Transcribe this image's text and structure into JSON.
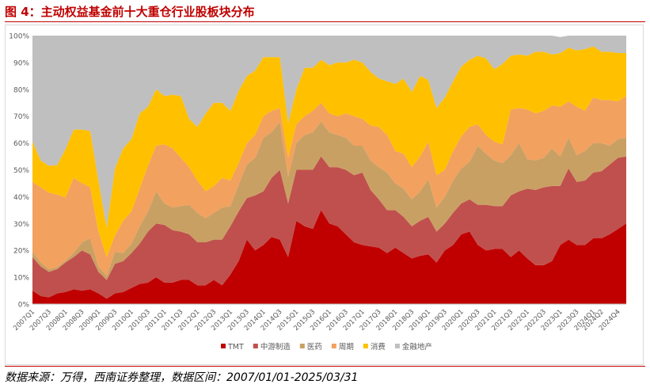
{
  "figure_title": "图 4：主动权益基金前十大重仓行业股板块分布",
  "source_note": "数据来源：万得，西南证券整理，数据区间：2007/01/01-2025/03/31",
  "colors": {
    "TMT": "#c00000",
    "中游制造": "#c0504d",
    "医药": "#c9a063",
    "周期": "#f2a15f",
    "消费": "#ffc000",
    "金融地产": "#bfbfbf",
    "accent": "#c00000"
  },
  "chart_data": {
    "type": "area",
    "stacked": true,
    "title": "",
    "xlabel": "",
    "ylabel": "",
    "ylim": [
      0,
      100
    ],
    "y_ticks": [
      "0%",
      "10%",
      "20%",
      "30%",
      "40%",
      "50%",
      "60%",
      "70%",
      "80%",
      "90%",
      "100%"
    ],
    "grid": false,
    "legend_position": "bottom",
    "x_tick_labels": [
      "2007Q1",
      "2007Q3",
      "2008Q1",
      "2008Q3",
      "2009Q1",
      "2009Q3",
      "2010Q1",
      "2010Q3",
      "2011Q1",
      "2011Q3",
      "2012Q1",
      "2012Q3",
      "2013Q1",
      "2013Q3",
      "2014Q1",
      "2014Q3",
      "2015Q1",
      "2015Q3",
      "2016Q1",
      "2016Q3",
      "2017Q1",
      "2017Q3",
      "2018Q1",
      "2018Q3",
      "2019Q1",
      "2019Q3",
      "2020Q1",
      "2020Q3",
      "2021Q1",
      "2021Q3",
      "2022Q1",
      "2022Q3",
      "2023Q1",
      "2023Q3",
      "2024Q1",
      "2024Q2",
      "2024Q4"
    ],
    "x": [
      "2007Q1",
      "2007Q2",
      "2007Q3",
      "2007Q4",
      "2008Q1",
      "2008Q2",
      "2008Q3",
      "2008Q4",
      "2009Q1",
      "2009Q2",
      "2009Q3",
      "2009Q4",
      "2010Q1",
      "2010Q2",
      "2010Q3",
      "2010Q4",
      "2011Q1",
      "2011Q2",
      "2011Q3",
      "2011Q4",
      "2012Q1",
      "2012Q2",
      "2012Q3",
      "2012Q4",
      "2013Q1",
      "2013Q2",
      "2013Q3",
      "2013Q4",
      "2014Q1",
      "2014Q2",
      "2014Q3",
      "2014Q4",
      "2015Q1",
      "2015Q2",
      "2015Q3",
      "2015Q4",
      "2016Q1",
      "2016Q2",
      "2016Q3",
      "2016Q4",
      "2017Q1",
      "2017Q2",
      "2017Q3",
      "2017Q4",
      "2018Q1",
      "2018Q2",
      "2018Q3",
      "2018Q4",
      "2019Q1",
      "2019Q2",
      "2019Q3",
      "2019Q4",
      "2020Q1",
      "2020Q2",
      "2020Q3",
      "2020Q4",
      "2021Q1",
      "2021Q2",
      "2021Q3",
      "2021Q4",
      "2022Q1",
      "2022Q2",
      "2022Q3",
      "2022Q4",
      "2023Q1",
      "2023Q2",
      "2023Q3",
      "2023Q4",
      "2024Q1",
      "2024Q2",
      "2024Q3",
      "2024Q4",
      "2025Q1"
    ],
    "series": [
      {
        "name": "TMT",
        "values": [
          5,
          3,
          2.5,
          4,
          4.5,
          5.5,
          5,
          5.5,
          4,
          2,
          4,
          4.5,
          6,
          7.5,
          8,
          10,
          8,
          8,
          9,
          9,
          7,
          7,
          9,
          7,
          11,
          16,
          24,
          20,
          22,
          25,
          24,
          17.5,
          31,
          29,
          28,
          35,
          30,
          29,
          26,
          23,
          22,
          21.5,
          21,
          19,
          21,
          19,
          17,
          18,
          18.5,
          15.5,
          20,
          22,
          26,
          27,
          22,
          20,
          20.5,
          20.5,
          17.5,
          20,
          17,
          14.5,
          14.5,
          16,
          22,
          24,
          22,
          22,
          24.5,
          24.5,
          26,
          28,
          30
        ]
      },
      {
        "name": "中游制造",
        "values": [
          12.5,
          11,
          9.5,
          9,
          11,
          12,
          15,
          13,
          8,
          7,
          11,
          11.5,
          13,
          15,
          19,
          20,
          21.5,
          19.5,
          18,
          17,
          16,
          16,
          15,
          17,
          18,
          18.5,
          15.5,
          20.5,
          20,
          22,
          26,
          20,
          19,
          21,
          22,
          20,
          21,
          22,
          24,
          25,
          27,
          21,
          18,
          16,
          14,
          13.5,
          12,
          13,
          14,
          11.5,
          10,
          12,
          11.5,
          12,
          15,
          17,
          16,
          16,
          23,
          22,
          26,
          28,
          29,
          28,
          22,
          26.5,
          23.5,
          24,
          24.5,
          25,
          26,
          26.5,
          25
        ]
      },
      {
        "name": "医药",
        "values": [
          2,
          1.5,
          1,
          0.8,
          0.7,
          1.5,
          3,
          6,
          2,
          1.5,
          4.5,
          3,
          3.5,
          6.5,
          7.5,
          12,
          8,
          8.5,
          9.5,
          11,
          11,
          9,
          10,
          12,
          7.5,
          10,
          12.5,
          14,
          20,
          17,
          18,
          10,
          10,
          13,
          14,
          13,
          13,
          12,
          12,
          11,
          10,
          11,
          12,
          14,
          10,
          10.5,
          10,
          11,
          14,
          9,
          10,
          12,
          13,
          14,
          22,
          19,
          17,
          16,
          15,
          18,
          11,
          11,
          11,
          14,
          11,
          11.5,
          10,
          11,
          11,
          10.5,
          7,
          7,
          7
        ]
      },
      {
        "name": "周期",
        "values": [
          26,
          28,
          28.5,
          27,
          23.5,
          28,
          22,
          19,
          13,
          7,
          6,
          12,
          12,
          14,
          17,
          17,
          22,
          22,
          18,
          14,
          12,
          10,
          10,
          11,
          9.5,
          8,
          8,
          8.5,
          8,
          8,
          5,
          7,
          7,
          7,
          8,
          7,
          7,
          7,
          9,
          11,
          10,
          13,
          15,
          14,
          12,
          13,
          12,
          13,
          14,
          12,
          10,
          11,
          12,
          13,
          8,
          7,
          7,
          7,
          17,
          13,
          18.5,
          17.5,
          17.5,
          16,
          18.5,
          13.5,
          18,
          15,
          17,
          16,
          17,
          14,
          15.5
        ]
      },
      {
        "name": "消费",
        "values": [
          15,
          10,
          10,
          11,
          18,
          18,
          20,
          21,
          19,
          11,
          25,
          27,
          27,
          28,
          22,
          21,
          18,
          20,
          23,
          18,
          20,
          29,
          31,
          28,
          26,
          27,
          25,
          24,
          22,
          20,
          19,
          13,
          13,
          18,
          16,
          16,
          18,
          20,
          19,
          21,
          21,
          20,
          18,
          20,
          25,
          28,
          28,
          30,
          23,
          25,
          27,
          26,
          26,
          25,
          25.5,
          28.5,
          27,
          30,
          20,
          20,
          20,
          23,
          22,
          19,
          20,
          20,
          21,
          23,
          19,
          18,
          18,
          18,
          16
        ]
      },
      {
        "name": "金融地产",
        "values": [
          39.5,
          46.5,
          48.5,
          48.2,
          42.3,
          35,
          35,
          35.5,
          54,
          71.5,
          49.5,
          42,
          38.5,
          29,
          26.5,
          20,
          22.5,
          22,
          22.5,
          31,
          34,
          29,
          25,
          25,
          28,
          20.5,
          15,
          13,
          8,
          8,
          8,
          32.5,
          20,
          12,
          12,
          9,
          11,
          10,
          10,
          9,
          10,
          13.5,
          16,
          17,
          18,
          16,
          21,
          15,
          16.5,
          27,
          23,
          17,
          11.5,
          9,
          7.5,
          8.5,
          12.5,
          10.5,
          7.5,
          7,
          7.5,
          6,
          6,
          7,
          6,
          4.5,
          5.5,
          5,
          4,
          6,
          6,
          6.5,
          6.5
        ]
      }
    ]
  }
}
